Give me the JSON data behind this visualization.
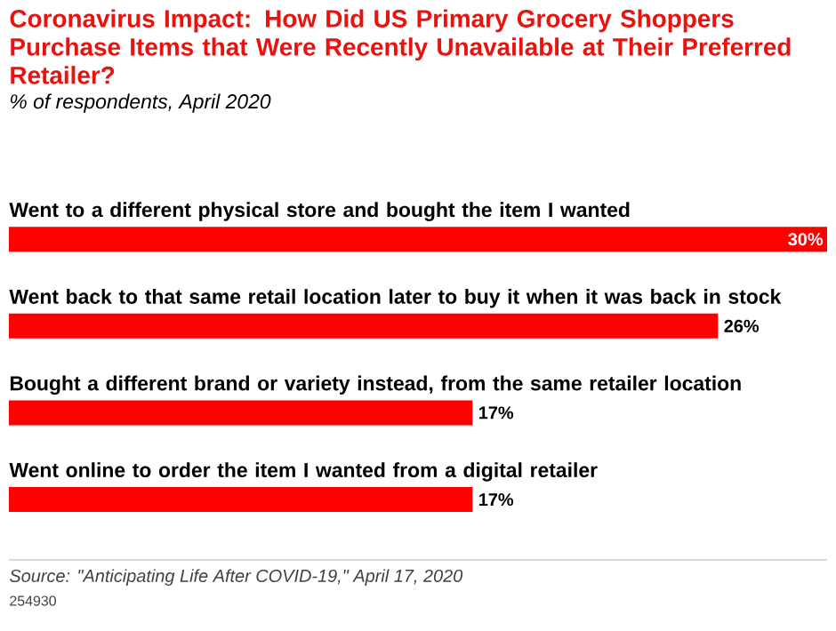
{
  "chart_data": {
    "type": "bar",
    "orientation": "horizontal",
    "title": "Coronavirus Impact: How Did US Primary Grocery Shoppers Purchase Items that Were Recently Unavailable at Their Preferred Retailer?",
    "subtitle": "% of respondents, April 2020",
    "categories": [
      "Went to a different physical store and bought the item I wanted",
      "Went back to that same retail location later to buy it when it was back in stock",
      "Bought a different brand or variety instead, from the same retailer location",
      "Went online to order the item I wanted from a digital retailer"
    ],
    "values": [
      30,
      26,
      17,
      17
    ],
    "value_labels": [
      "30%",
      "26%",
      "17%",
      "17%"
    ],
    "color": "#ff0000",
    "annotations": [
      "Source: \"Anticipating Life After COVID-19,\" April 17, 2020",
      "254930"
    ]
  }
}
